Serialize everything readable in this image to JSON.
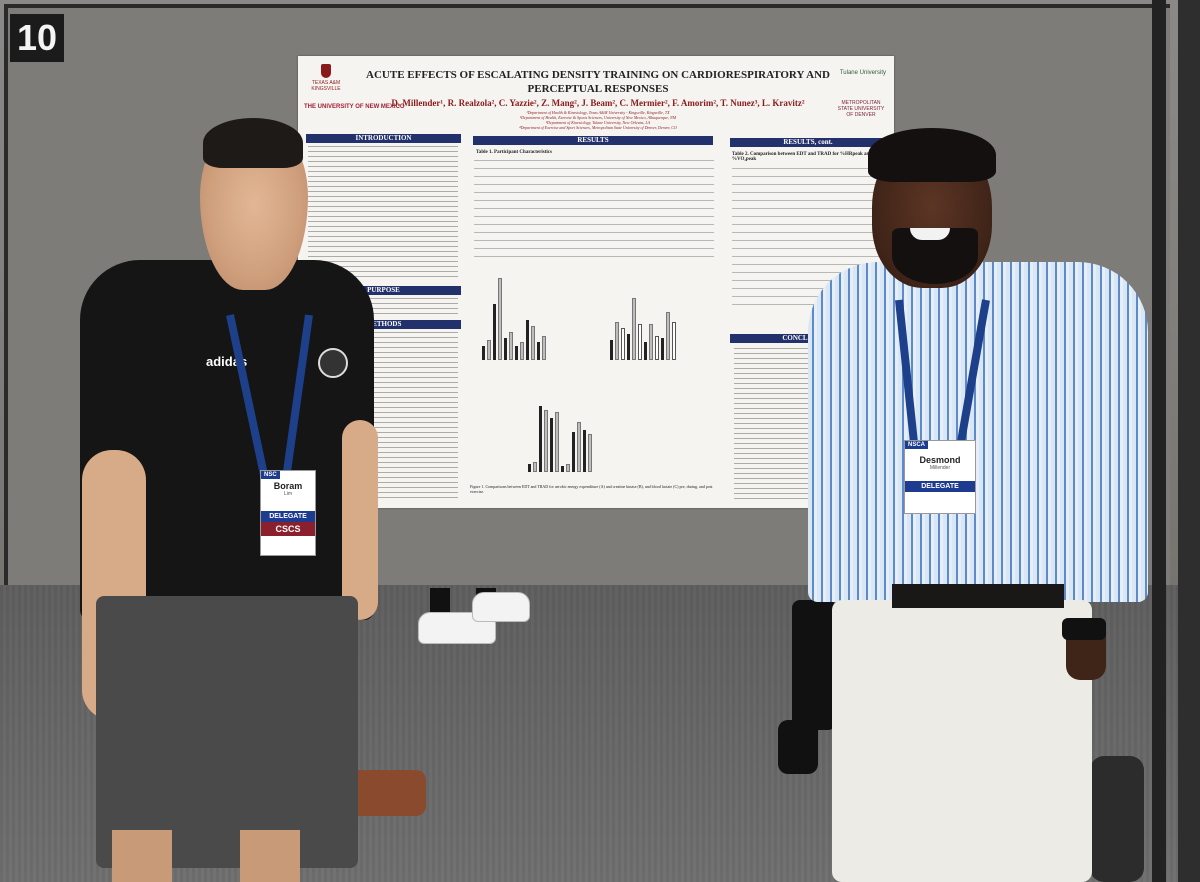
{
  "scene": {
    "description_type": "photo",
    "board_number": "10"
  },
  "poster": {
    "title": "ACUTE EFFECTS OF ESCALATING DENSITY TRAINING ON CARDIORESPIRATORY AND PERCEPTUAL RESPONSES",
    "authors": "D. Millender¹, R. Realzola², C. Yazzie², Z. Mang², J. Beam², C. Mermier², F. Amorim², T. Nunez³, L. Kravitz²",
    "affiliations": [
      "¹Department of Health & Kinesiology, Texas A&M University - Kingsville, Kingsville, TX",
      "²Department of Health, Exercise & Sports Sciences, University of New Mexico, Albuquerque, NM",
      "³Department of Kinesiology, Tulane University, New Orleans, LA",
      "⁴Department of Exercise and Sport Sciences, Metropolitan State University of Denver, Denver, CO"
    ],
    "logos": {
      "tamuk": "TEXAS A&M KINGSVILLE",
      "unm": "THE UNIVERSITY OF NEW MEXICO",
      "tulane": "Tulane University",
      "msu": "METROPOLITAN STATE UNIVERSITY OF DENVER"
    },
    "sections": {
      "introduction": "INTRODUCTION",
      "purpose": "PURPOSE",
      "methods": "METHODS",
      "results": "RESULTS",
      "results_cont": "RESULTS, cont.",
      "conclusions": "CONCLUSIONS"
    },
    "table1_title": "Table 1. Participant Characteristics",
    "table2_title": "Table 2. Comparison between EDT and TRAD for %HRpeak and %VO₂peak",
    "figure_caption": "Figure 1. Comparisons between EDT and TRAD for aerobic energy expenditure (A) and creatine kinase (B), and blood lactate (C) pre, during, and post exercise."
  },
  "badges": {
    "left": {
      "name": "Boram",
      "surname": "Lim",
      "role": "DELEGATE",
      "cert": "CSCS",
      "tag": "NSC"
    },
    "right": {
      "name": "Desmond",
      "surname": "Millender",
      "role": "DELEGATE",
      "tag": "NSCA"
    }
  },
  "apparel": {
    "left_shirt_logo": "adidas"
  }
}
